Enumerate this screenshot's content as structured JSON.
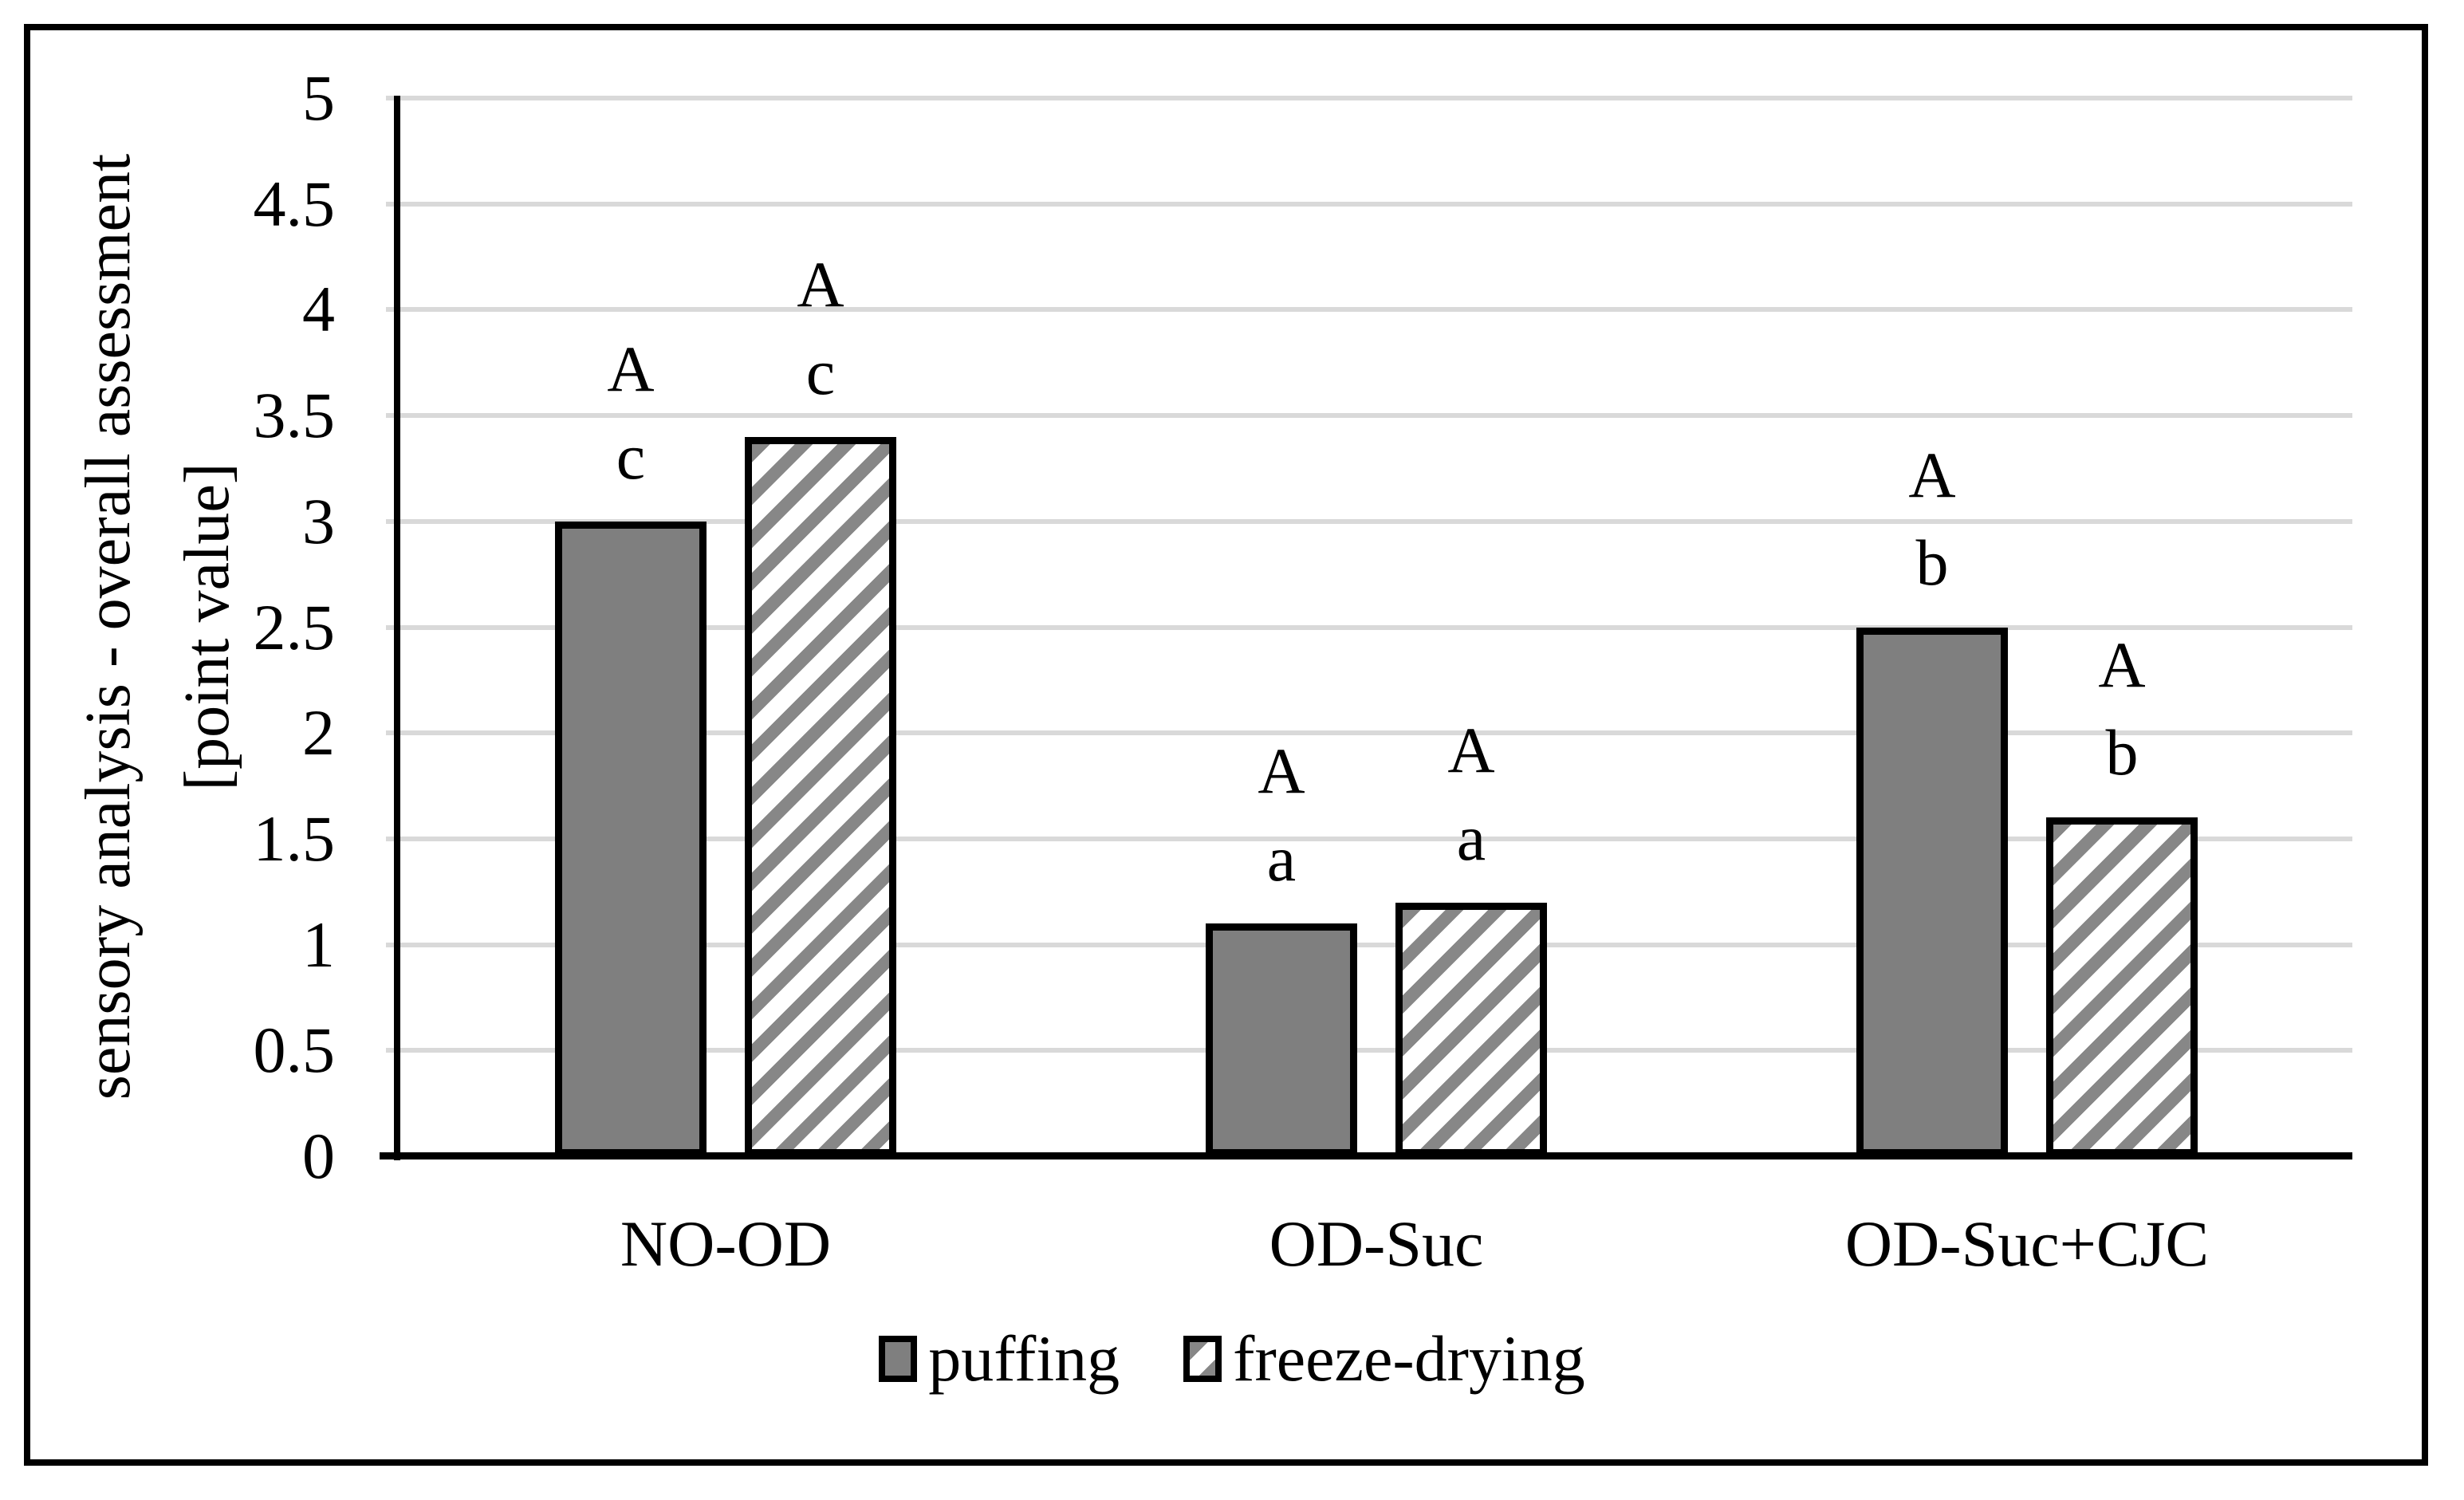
{
  "chart_data": {
    "type": "bar",
    "title": "",
    "categories": [
      "NO-OD",
      "OD-Suc",
      "OD-Suc+CJC"
    ],
    "series": [
      {
        "name": "puffing",
        "fill": "solid-gray",
        "values": [
          3.0,
          1.1,
          2.5
        ],
        "annotations": [
          [
            "A",
            "c"
          ],
          [
            "A",
            "a"
          ],
          [
            "A",
            "b"
          ]
        ]
      },
      {
        "name": "freeze-drying",
        "fill": "diagonal-hatch",
        "values": [
          3.4,
          1.2,
          1.6
        ],
        "annotations": [
          [
            "A",
            "c"
          ],
          [
            "A",
            "a"
          ],
          [
            "A",
            "b"
          ]
        ]
      }
    ],
    "ylabel_line1": "sensory analysis - overall assessment",
    "ylabel_line2": "[point value]",
    "xlabel": "",
    "ylim": [
      0,
      5
    ],
    "ytick_step": 0.5,
    "yticks": [
      "0",
      "0.5",
      "1",
      "1.5",
      "2",
      "2.5",
      "3",
      "3.5",
      "4",
      "4.5",
      "5"
    ],
    "grid": true,
    "legend_position": "bottom-center"
  },
  "colors": {
    "bar_solid_fill": "#7F7F7F",
    "hatch_stripe": "#878787",
    "hatch_background": "#FFFFFF",
    "gridline": "#D9D9D9",
    "axis": "#000000",
    "background": "#FFFFFF"
  }
}
